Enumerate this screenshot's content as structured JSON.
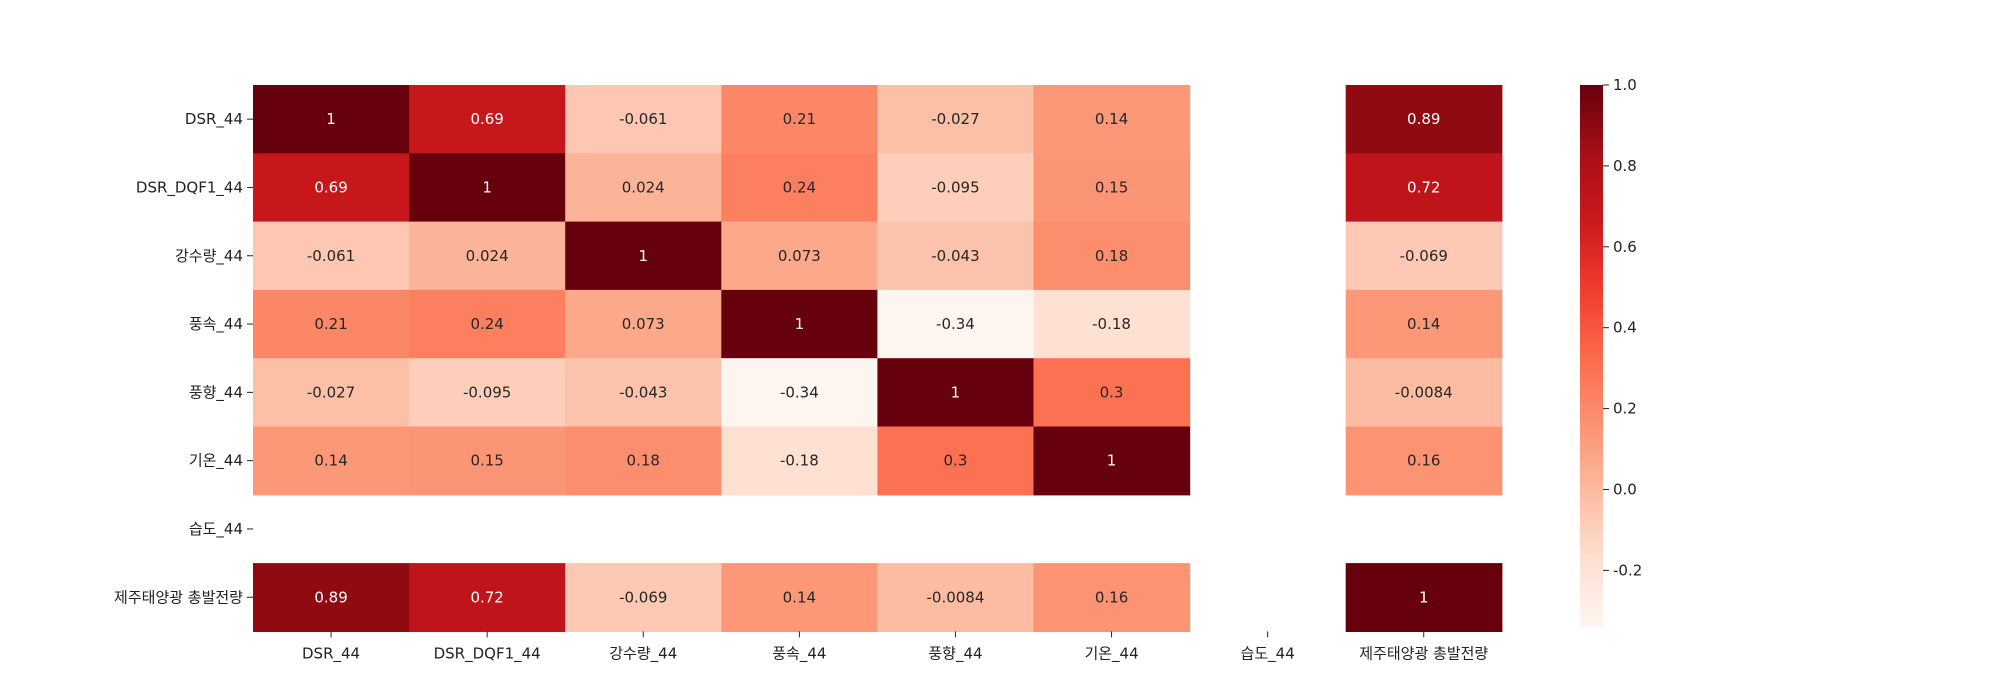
{
  "chart_data": {
    "type": "heatmap",
    "title": "",
    "xlabel": "",
    "ylabel": "",
    "rows": [
      "DSR_44",
      "DSR_DQF1_44",
      "강수량_44",
      "풍속_44",
      "풍향_44",
      "기온_44",
      "습도_44",
      "제주태양광 총발전량"
    ],
    "columns": [
      "DSR_44",
      "DSR_DQF1_44",
      "강수량_44",
      "풍속_44",
      "풍향_44",
      "기온_44",
      "습도_44",
      "제주태양광 총발전량"
    ],
    "values": [
      [
        1,
        0.69,
        -0.061,
        0.21,
        -0.027,
        0.14,
        null,
        0.89
      ],
      [
        0.69,
        1,
        0.024,
        0.24,
        -0.095,
        0.15,
        null,
        0.72
      ],
      [
        -0.061,
        0.024,
        1,
        0.073,
        -0.043,
        0.18,
        null,
        -0.069
      ],
      [
        0.21,
        0.24,
        0.073,
        1,
        -0.34,
        -0.18,
        null,
        0.14
      ],
      [
        -0.027,
        -0.095,
        -0.043,
        -0.34,
        1,
        0.3,
        null,
        -0.0084
      ],
      [
        0.14,
        0.15,
        0.18,
        -0.18,
        0.3,
        1,
        null,
        0.16
      ],
      [
        null,
        null,
        null,
        null,
        null,
        null,
        null,
        null
      ],
      [
        0.89,
        0.72,
        -0.069,
        0.14,
        -0.0084,
        0.16,
        null,
        1
      ]
    ],
    "annotations": [
      [
        "1",
        "0.69",
        "-0.061",
        "0.21",
        "-0.027",
        "0.14",
        "",
        "0.89"
      ],
      [
        "0.69",
        "1",
        "0.024",
        "0.24",
        "-0.095",
        "0.15",
        "",
        "0.72"
      ],
      [
        "-0.061",
        "0.024",
        "1",
        "0.073",
        "-0.043",
        "0.18",
        "",
        "-0.069"
      ],
      [
        "0.21",
        "0.24",
        "0.073",
        "1",
        "-0.34",
        "-0.18",
        "",
        "0.14"
      ],
      [
        "-0.027",
        "-0.095",
        "-0.043",
        "-0.34",
        "1",
        "0.3",
        "",
        "-0.0084"
      ],
      [
        "0.14",
        "0.15",
        "0.18",
        "-0.18",
        "0.3",
        "1",
        "",
        "0.16"
      ],
      [
        "",
        "",
        "",
        "",
        "",
        "",
        "",
        ""
      ],
      [
        "0.89",
        "0.72",
        "-0.069",
        "0.14",
        "-0.0084",
        "0.16",
        "",
        "1"
      ]
    ],
    "colormap": "Reds",
    "vmin": -0.34,
    "vmax": 1,
    "colorbar": {
      "ticks": [
        1.0,
        0.8,
        0.6,
        0.4,
        0.2,
        0.0,
        -0.2
      ],
      "tick_labels": [
        "1.0",
        "0.8",
        "0.6",
        "0.4",
        "0.2",
        "0.0",
        "-0.2"
      ],
      "placement": "right"
    },
    "grid": false
  }
}
